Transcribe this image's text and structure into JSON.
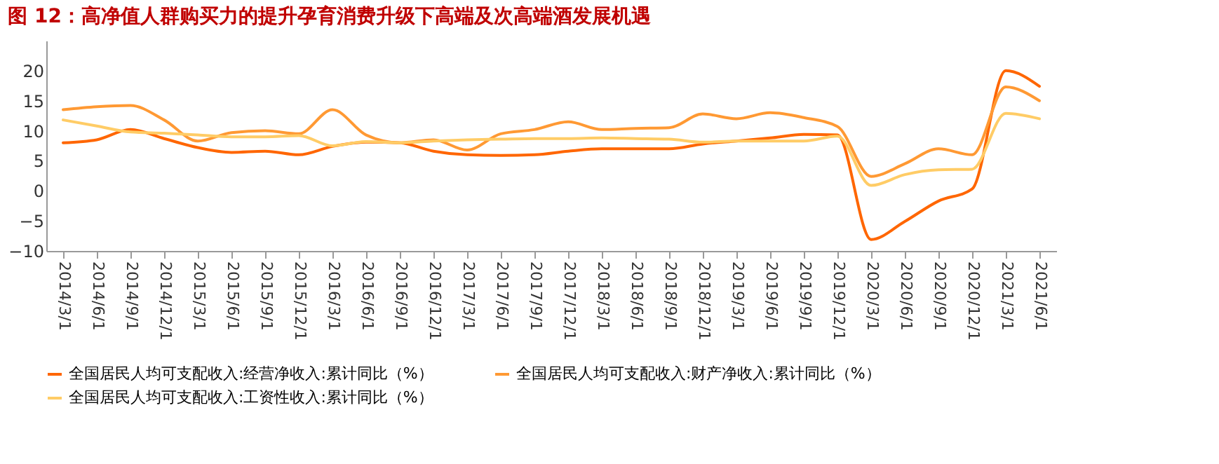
{
  "chart_data": {
    "type": "line",
    "title": "图 12：高净值人群购买力的提升孕育消费升级下高端及次高端酒发展机遇",
    "categories": [
      "2014/3/1",
      "2014/6/1",
      "2014/9/1",
      "2014/12/1",
      "2015/3/1",
      "2015/6/1",
      "2015/9/1",
      "2015/12/1",
      "2016/3/1",
      "2016/6/1",
      "2016/9/1",
      "2016/12/1",
      "2017/3/1",
      "2017/6/1",
      "2017/9/1",
      "2017/12/1",
      "2018/3/1",
      "2018/6/1",
      "2018/9/1",
      "2018/12/1",
      "2019/3/1",
      "2019/6/1",
      "2019/9/1",
      "2019/12/1",
      "2020/3/1",
      "2020/6/1",
      "2020/9/1",
      "2020/12/1",
      "2021/3/1",
      "2021/6/1"
    ],
    "series": [
      {
        "name": "全国居民人均可支配收入:经营净收入:累计同比（%）",
        "color": "#ff6600",
        "values": [
          8,
          8.5,
          10.2,
          8.7,
          7.2,
          6.4,
          6.6,
          6,
          7.4,
          8.1,
          8,
          6.6,
          6,
          5.9,
          6,
          6.6,
          7,
          7,
          7,
          7.8,
          8.3,
          8.8,
          9.4,
          9.3,
          -8.1,
          -5.1,
          -1.7,
          0.3,
          20,
          17.4
        ]
      },
      {
        "name": "全国居民人均可支配收入:财产净收入:累计同比（%）",
        "color": "#ff9933",
        "values": [
          13.5,
          14,
          14.2,
          11.8,
          8.3,
          9.7,
          10,
          9.5,
          13.5,
          9.3,
          8,
          8.5,
          6.8,
          9.5,
          10.2,
          11.5,
          10.2,
          10.4,
          10.5,
          12.8,
          12,
          13,
          12.2,
          10.7,
          2.4,
          4.5,
          7,
          6,
          17.3,
          15
        ]
      },
      {
        "name": "全国居民人均可支配收入:工资性收入:累计同比（%）",
        "color": "#ffcc66",
        "values": [
          11.8,
          10.8,
          9.8,
          9.6,
          9.3,
          9,
          9,
          9.2,
          7.5,
          8.2,
          8,
          8.3,
          8.5,
          8.6,
          8.7,
          8.7,
          8.8,
          8.7,
          8.6,
          8.1,
          8.3,
          8.3,
          8.3,
          9.1,
          0.9,
          2.7,
          3.5,
          3.6,
          12.9,
          12
        ]
      }
    ],
    "ylim": [
      -10,
      25
    ],
    "yticks": [
      -10,
      -5,
      0,
      5,
      10,
      15,
      20
    ],
    "grid": false,
    "legend": "bottom",
    "marker": "none",
    "line_style": "solid"
  }
}
